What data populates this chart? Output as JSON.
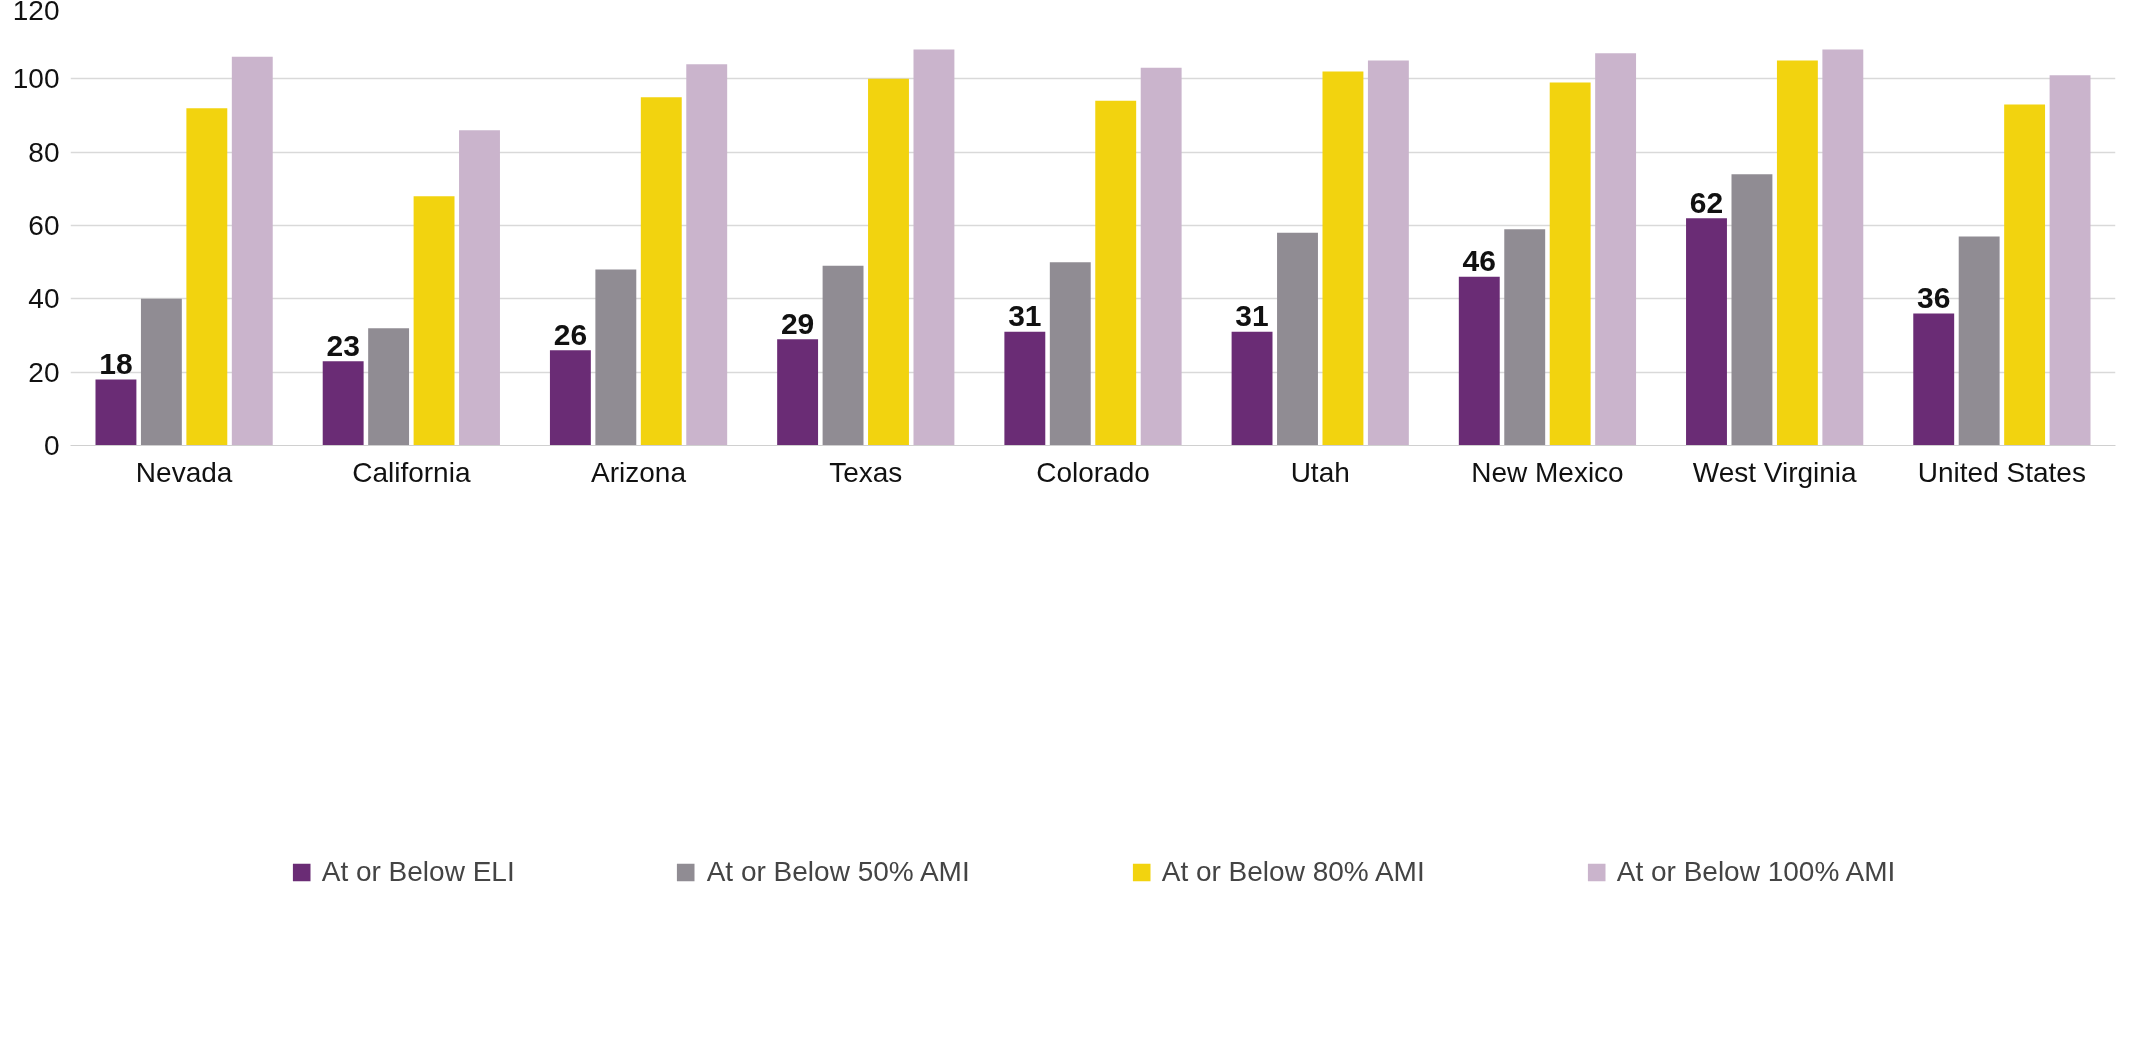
{
  "chart_data": {
    "type": "bar",
    "categories": [
      "Nevada",
      "California",
      "Arizona",
      "Texas",
      "Colorado",
      "Utah",
      "New Mexico",
      "West Virginia",
      "United States"
    ],
    "ylim": [
      0,
      120
    ],
    "yticks": [
      0,
      20,
      40,
      60,
      80,
      100,
      120
    ],
    "grid": "y",
    "legend": "bottom",
    "series": [
      {
        "name": "At or Below ELI",
        "color": "#6a2c75",
        "values": [
          18,
          23,
          26,
          29,
          31,
          31,
          46,
          62,
          36
        ],
        "value_labels": [
          "18",
          "23",
          "26",
          "29",
          "31",
          "31",
          "46",
          "62",
          "36"
        ]
      },
      {
        "name": "At or Below 50% AMI",
        "color": "#908c93",
        "values": [
          40,
          32,
          48,
          49,
          50,
          58,
          59,
          74,
          57
        ]
      },
      {
        "name": "At or Below 80% AMI",
        "color": "#f2d30f",
        "values": [
          92,
          68,
          95,
          100,
          94,
          102,
          99,
          105,
          93
        ]
      },
      {
        "name": "At or Below 100% AMI",
        "color": "#cab4cc",
        "values": [
          106,
          86,
          104,
          108,
          103,
          105,
          107,
          108,
          101
        ]
      }
    ]
  }
}
